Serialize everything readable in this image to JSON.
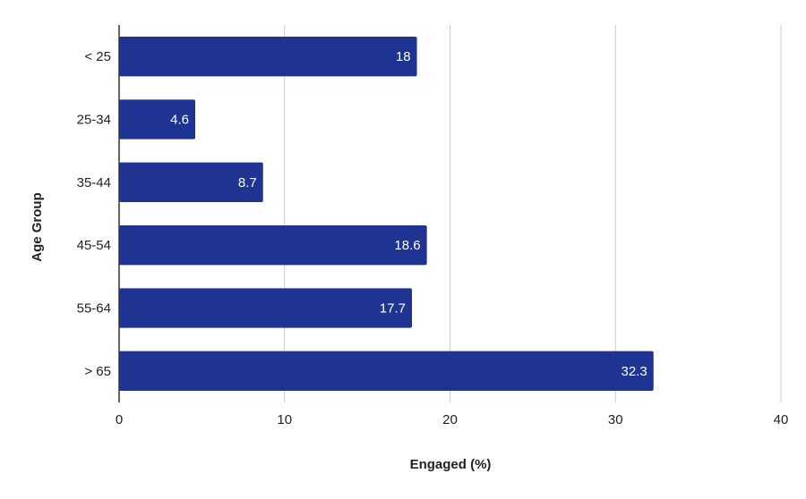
{
  "chart_data": {
    "type": "bar",
    "orientation": "horizontal",
    "categories": [
      "< 25",
      "25-34",
      "35-44",
      "45-54",
      "55-64",
      "> 65"
    ],
    "values": [
      18,
      4.6,
      8.7,
      18.6,
      17.7,
      32.3
    ],
    "value_labels": [
      "18",
      "4.6",
      "8.7",
      "18.6",
      "17.7",
      "32.3"
    ],
    "xlabel": "Engaged (%)",
    "ylabel": "Age Group",
    "xlim": [
      0,
      40
    ],
    "xticks": [
      0,
      10,
      20,
      30,
      40
    ],
    "xtick_labels": [
      "0",
      "10",
      "20",
      "30",
      "40"
    ],
    "grid": "vertical",
    "legend": "none",
    "bar_color": "#1f3393",
    "grid_color": "#cccccc",
    "axis_color": "#333333"
  }
}
